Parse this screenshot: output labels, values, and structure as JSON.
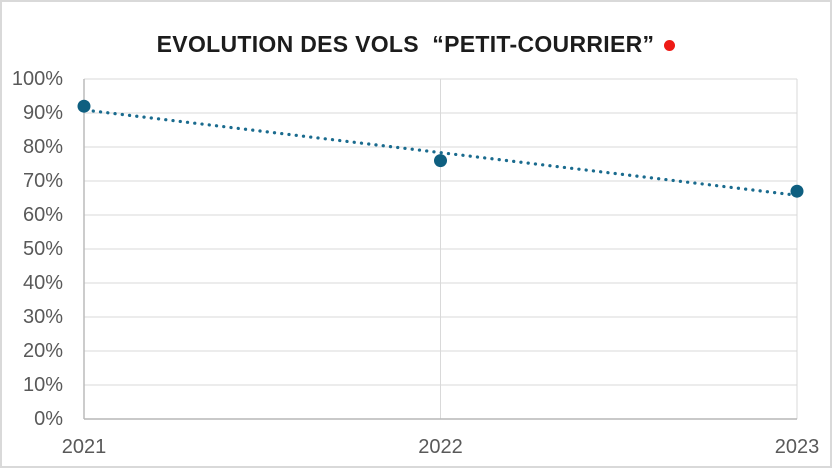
{
  "title": {
    "text": "EVOLUTION DES VOLS  “PETIT-COURRIER”"
  },
  "colors": {
    "title_text": "#1c1c1c",
    "red_dot": "#ee1a15",
    "point": "#0e5f80",
    "trendline": "#1a6b8e",
    "gridline": "#d9d9d9",
    "axis": "#b7b7b7",
    "tick_text": "#595959",
    "border": "#d9d9d9",
    "background": "#ffffff"
  },
  "chart_data": {
    "type": "scatter",
    "title": "EVOLUTION DES VOLS  “PETIT-COURRIER”",
    "categories": [
      "2021",
      "2022",
      "2023"
    ],
    "values": [
      92,
      76,
      67
    ],
    "xlabel": "",
    "ylabel": "",
    "ylim": [
      0,
      100
    ],
    "y_tick_step": 10,
    "y_ticks": [
      "0%",
      "10%",
      "20%",
      "30%",
      "40%",
      "50%",
      "60%",
      "70%",
      "80%",
      "90%",
      "100%"
    ],
    "grid": true,
    "legend": "none",
    "marker": "circle",
    "trendline": {
      "type": "linear",
      "style": "dotted"
    }
  }
}
